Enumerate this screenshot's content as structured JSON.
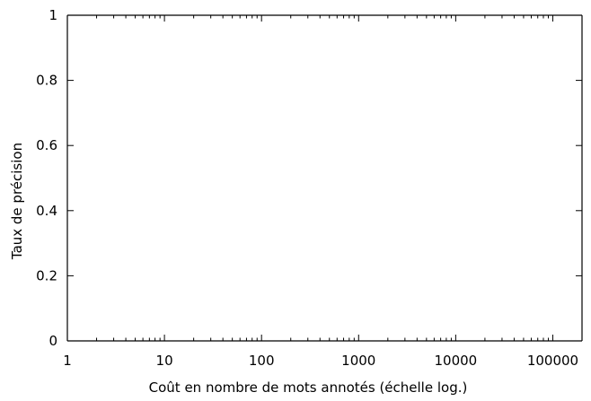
{
  "chart_data": {
    "type": "line",
    "title": "",
    "xlabel": "Coût en nombre de mots annotés (échelle log.)",
    "ylabel": "Taux de précision",
    "xscale": "log",
    "xlim": [
      1,
      200000
    ],
    "ylim": [
      0,
      1
    ],
    "x_ticks": [
      1,
      10,
      100,
      1000,
      10000,
      100000
    ],
    "x_tick_labels": [
      "1",
      "10",
      "100",
      "1000",
      "10000",
      "100000"
    ],
    "y_ticks": [
      0,
      0.2,
      0.4,
      0.6,
      0.8,
      1
    ],
    "y_tick_labels": [
      "0",
      "0.2",
      "0.4",
      "0.6",
      "0.8",
      "1"
    ],
    "grid": false,
    "series": []
  }
}
